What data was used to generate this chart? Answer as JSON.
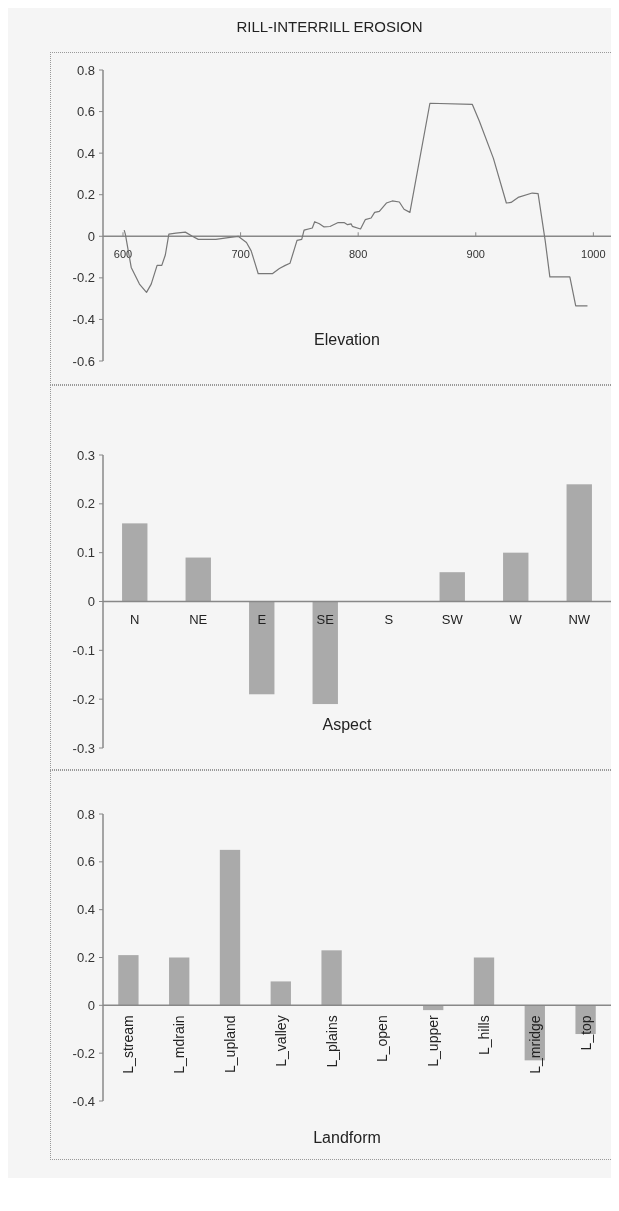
{
  "chart_data": [
    {
      "type": "line",
      "title": "RILL-INTERRILL EROSION",
      "xlabel": "Elevation",
      "color": "#777777",
      "xlim": [
        583,
        1015
      ],
      "xticks": [
        600,
        700,
        800,
        900,
        1000
      ],
      "ylim": [
        -0.6,
        0.8
      ],
      "yticks": [
        -0.6,
        -0.4,
        -0.2,
        0,
        0.2,
        0.4,
        0.6,
        0.8
      ],
      "x": [
        601,
        602,
        607,
        614,
        620,
        624,
        629,
        633,
        636,
        639,
        645,
        653,
        659,
        664,
        679,
        691,
        698,
        705,
        709,
        715,
        721,
        727,
        733,
        738,
        742,
        748,
        752,
        754,
        761,
        763,
        767,
        771,
        776,
        783,
        788,
        791,
        794,
        795,
        802,
        806,
        811,
        814,
        818,
        824,
        829,
        835,
        839,
        844,
        861,
        897,
        903,
        915,
        926,
        930,
        936,
        948,
        953,
        959,
        963,
        980,
        985,
        995
      ],
      "values": [
        0.03,
        0.01,
        -0.15,
        -0.23,
        -0.27,
        -0.23,
        -0.14,
        -0.14,
        -0.09,
        0.01,
        0.015,
        0.02,
        0,
        -0.015,
        -0.015,
        -0.005,
        0,
        -0.03,
        -0.07,
        -0.18,
        -0.18,
        -0.18,
        -0.155,
        -0.14,
        -0.13,
        -0.02,
        -0.015,
        0.03,
        0.04,
        0.07,
        0.06,
        0.045,
        0.047,
        0.066,
        0.066,
        0.056,
        0.06,
        0.048,
        0.035,
        0.08,
        0.088,
        0.115,
        0.12,
        0.16,
        0.17,
        0.165,
        0.13,
        0.115,
        0.64,
        0.635,
        0.555,
        0.375,
        0.16,
        0.163,
        0.187,
        0.208,
        0.205,
        -0.02,
        -0.195,
        -0.195,
        -0.335,
        -0.335
      ]
    },
    {
      "type": "bar",
      "xlabel": "Aspect",
      "color": "#aaaaaa",
      "ylim": [
        -0.3,
        0.3
      ],
      "yticks": [
        -0.3,
        -0.2,
        -0.1,
        0,
        0.1,
        0.2,
        0.3
      ],
      "categories": [
        "N",
        "NE",
        "E",
        "SE",
        "S",
        "SW",
        "W",
        "NW"
      ],
      "values": [
        0.16,
        0.09,
        -0.19,
        -0.21,
        0,
        0.06,
        0.1,
        0.24
      ]
    },
    {
      "type": "bar",
      "xlabel": "Landform",
      "color": "#aaaaaa",
      "ylim": [
        -0.4,
        0.8
      ],
      "yticks": [
        -0.4,
        -0.2,
        0,
        0.2,
        0.4,
        0.6,
        0.8
      ],
      "categories": [
        "L_stream",
        "L_mdrain",
        "L_upland",
        "L_valley",
        "L_plains",
        "L_open",
        "L_upper",
        "L_hills",
        "L_mridge",
        "L_top"
      ],
      "values": [
        0.21,
        0.2,
        0.65,
        0.1,
        0.23,
        0,
        -0.02,
        0.2,
        -0.23,
        -0.12
      ]
    }
  ]
}
